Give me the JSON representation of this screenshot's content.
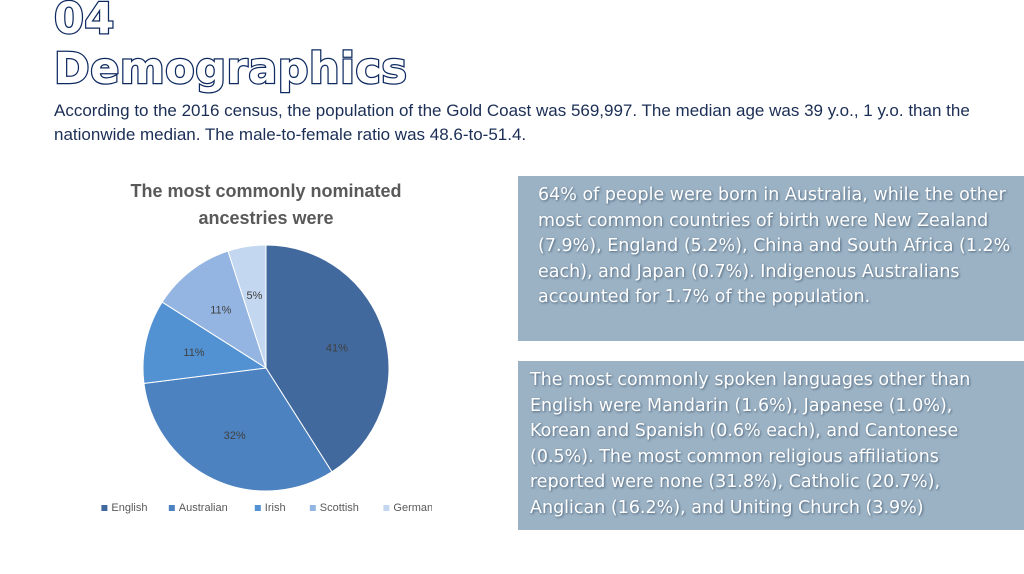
{
  "slide": {
    "title_line1": "04",
    "title_line2": "Demographics",
    "intro": "According to the 2016 census, the population of the Gold Coast was 569,997. The median age was 39 y.o., 1 y.o. than the nationwide median. The male-to-female ratio was 48.6-to-51.4.",
    "box1_text": "64% of people were born in Australia, while the other most common countries of birth were New Zealand (7.9%), England (5.2%), China and South Africa (1.2% each), and Japan (0.7%). Indigenous Australians accounted for 1.7% of the population.",
    "box2_text": "The most commonly spoken languages other than English were Mandarin (1.6%), Japanese (1.0%), Korean and Spanish (0.6% each), and Cantonese (0.5%). The most common religious affiliations reported were none (31.8%), Catholic (20.7%), Anglican (16.2%), and Uniting Church (3.9%)"
  },
  "chart_data": {
    "type": "pie",
    "title_lines": [
      "The most commonly nominated",
      "ancestries were"
    ],
    "categories": [
      "English",
      "Australian",
      "Irish",
      "Scottish",
      "German"
    ],
    "values": [
      41,
      32,
      11,
      11,
      5
    ],
    "value_labels": [
      "41%",
      "32%",
      "11%",
      "11%",
      "5%"
    ],
    "colors": [
      "#41699e",
      "#4c82c0",
      "#5292d3",
      "#94b5e1",
      "#c4d7f0"
    ],
    "start_angle_deg": 0,
    "direction": "clockwise",
    "legend_position": "bottom"
  }
}
